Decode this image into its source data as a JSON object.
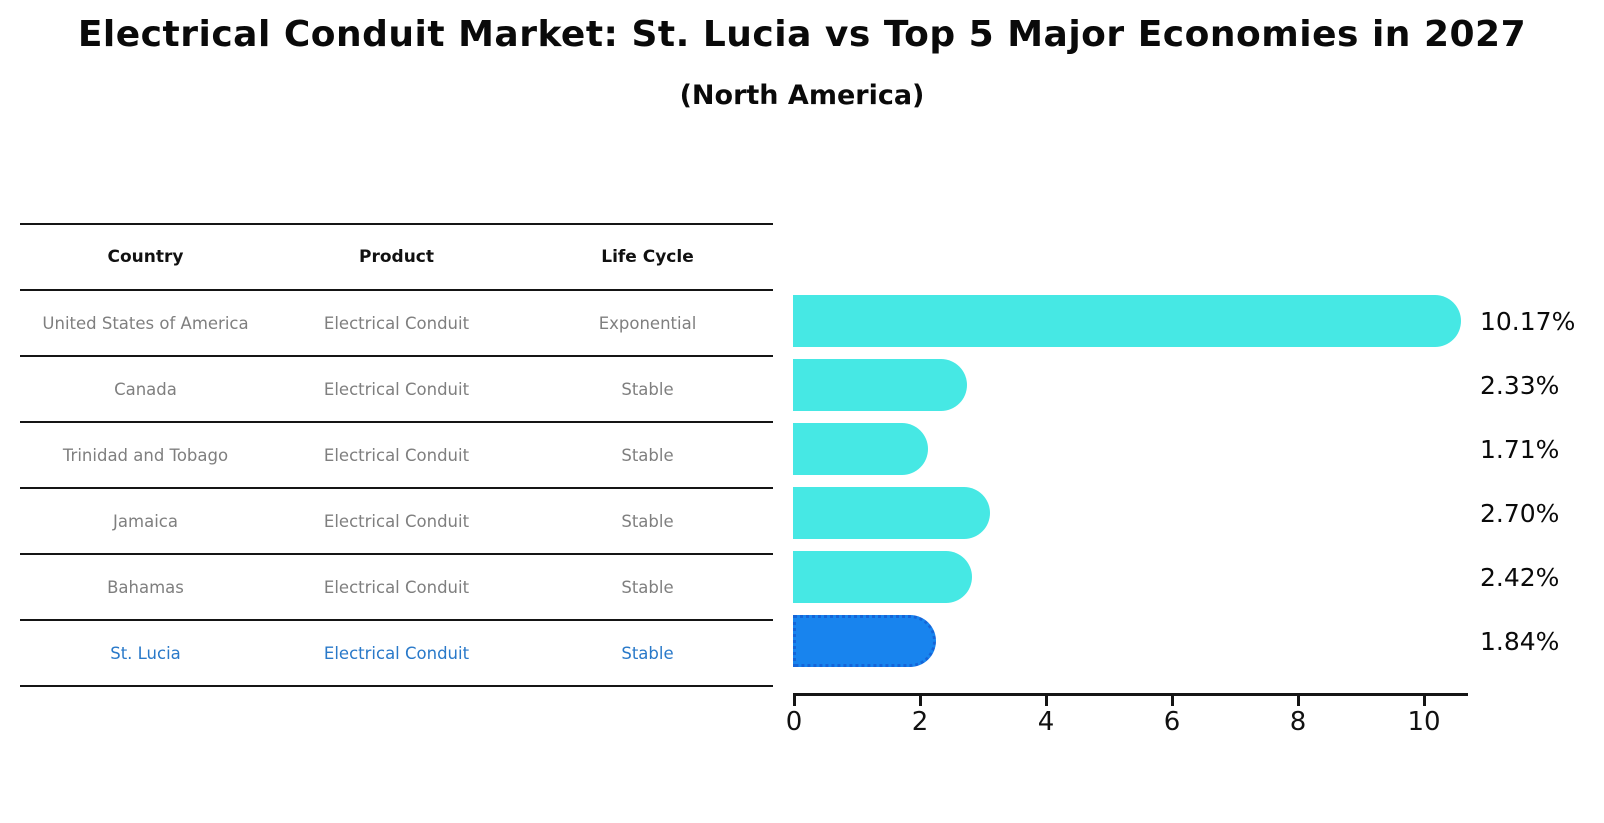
{
  "title": "Electrical Conduit Market: St. Lucia vs Top 5 Major Economies in 2027",
  "subtitle": "(North America)",
  "table": {
    "columns": [
      "Country",
      "Product",
      "Life Cycle"
    ],
    "rows": [
      {
        "country": "United States of America",
        "product": "Electrical Conduit",
        "life_cycle": "Exponential",
        "highlight": false
      },
      {
        "country": "Canada",
        "product": "Electrical Conduit",
        "life_cycle": "Stable",
        "highlight": false
      },
      {
        "country": "Trinidad and Tobago",
        "product": "Electrical Conduit",
        "life_cycle": "Stable",
        "highlight": false
      },
      {
        "country": "Jamaica",
        "product": "Electrical Conduit",
        "life_cycle": "Stable",
        "highlight": false
      },
      {
        "country": "Bahamas",
        "product": "Electrical Conduit",
        "life_cycle": "Stable",
        "highlight": false
      },
      {
        "country": "St. Lucia",
        "product": "Electrical Conduit",
        "life_cycle": "Stable",
        "highlight": true
      }
    ]
  },
  "chart_data": {
    "type": "bar",
    "orientation": "horizontal",
    "title": "Electrical Conduit Market: St. Lucia vs Top 5 Major Economies in 2027",
    "subtitle": "(North America)",
    "categories": [
      "United States of America",
      "Canada",
      "Trinidad and Tobago",
      "Jamaica",
      "Bahamas",
      "St. Lucia"
    ],
    "values": [
      10.17,
      2.33,
      1.71,
      2.7,
      2.42,
      1.84
    ],
    "value_labels": [
      "10.17%",
      "2.33%",
      "1.71%",
      "2.70%",
      "2.42%",
      "1.84%"
    ],
    "xlabel": "",
    "ylabel": "",
    "xticks": [
      0,
      2,
      4,
      6,
      8,
      10
    ],
    "xlim": [
      0,
      10.7
    ],
    "grid": false,
    "legend": false,
    "bar_color": "#46E8E4",
    "highlight_index": 5,
    "highlight_bar_color": "#1884EE",
    "highlight_border_color": "#1565D8",
    "highlight_text_color": "#2979C9"
  }
}
